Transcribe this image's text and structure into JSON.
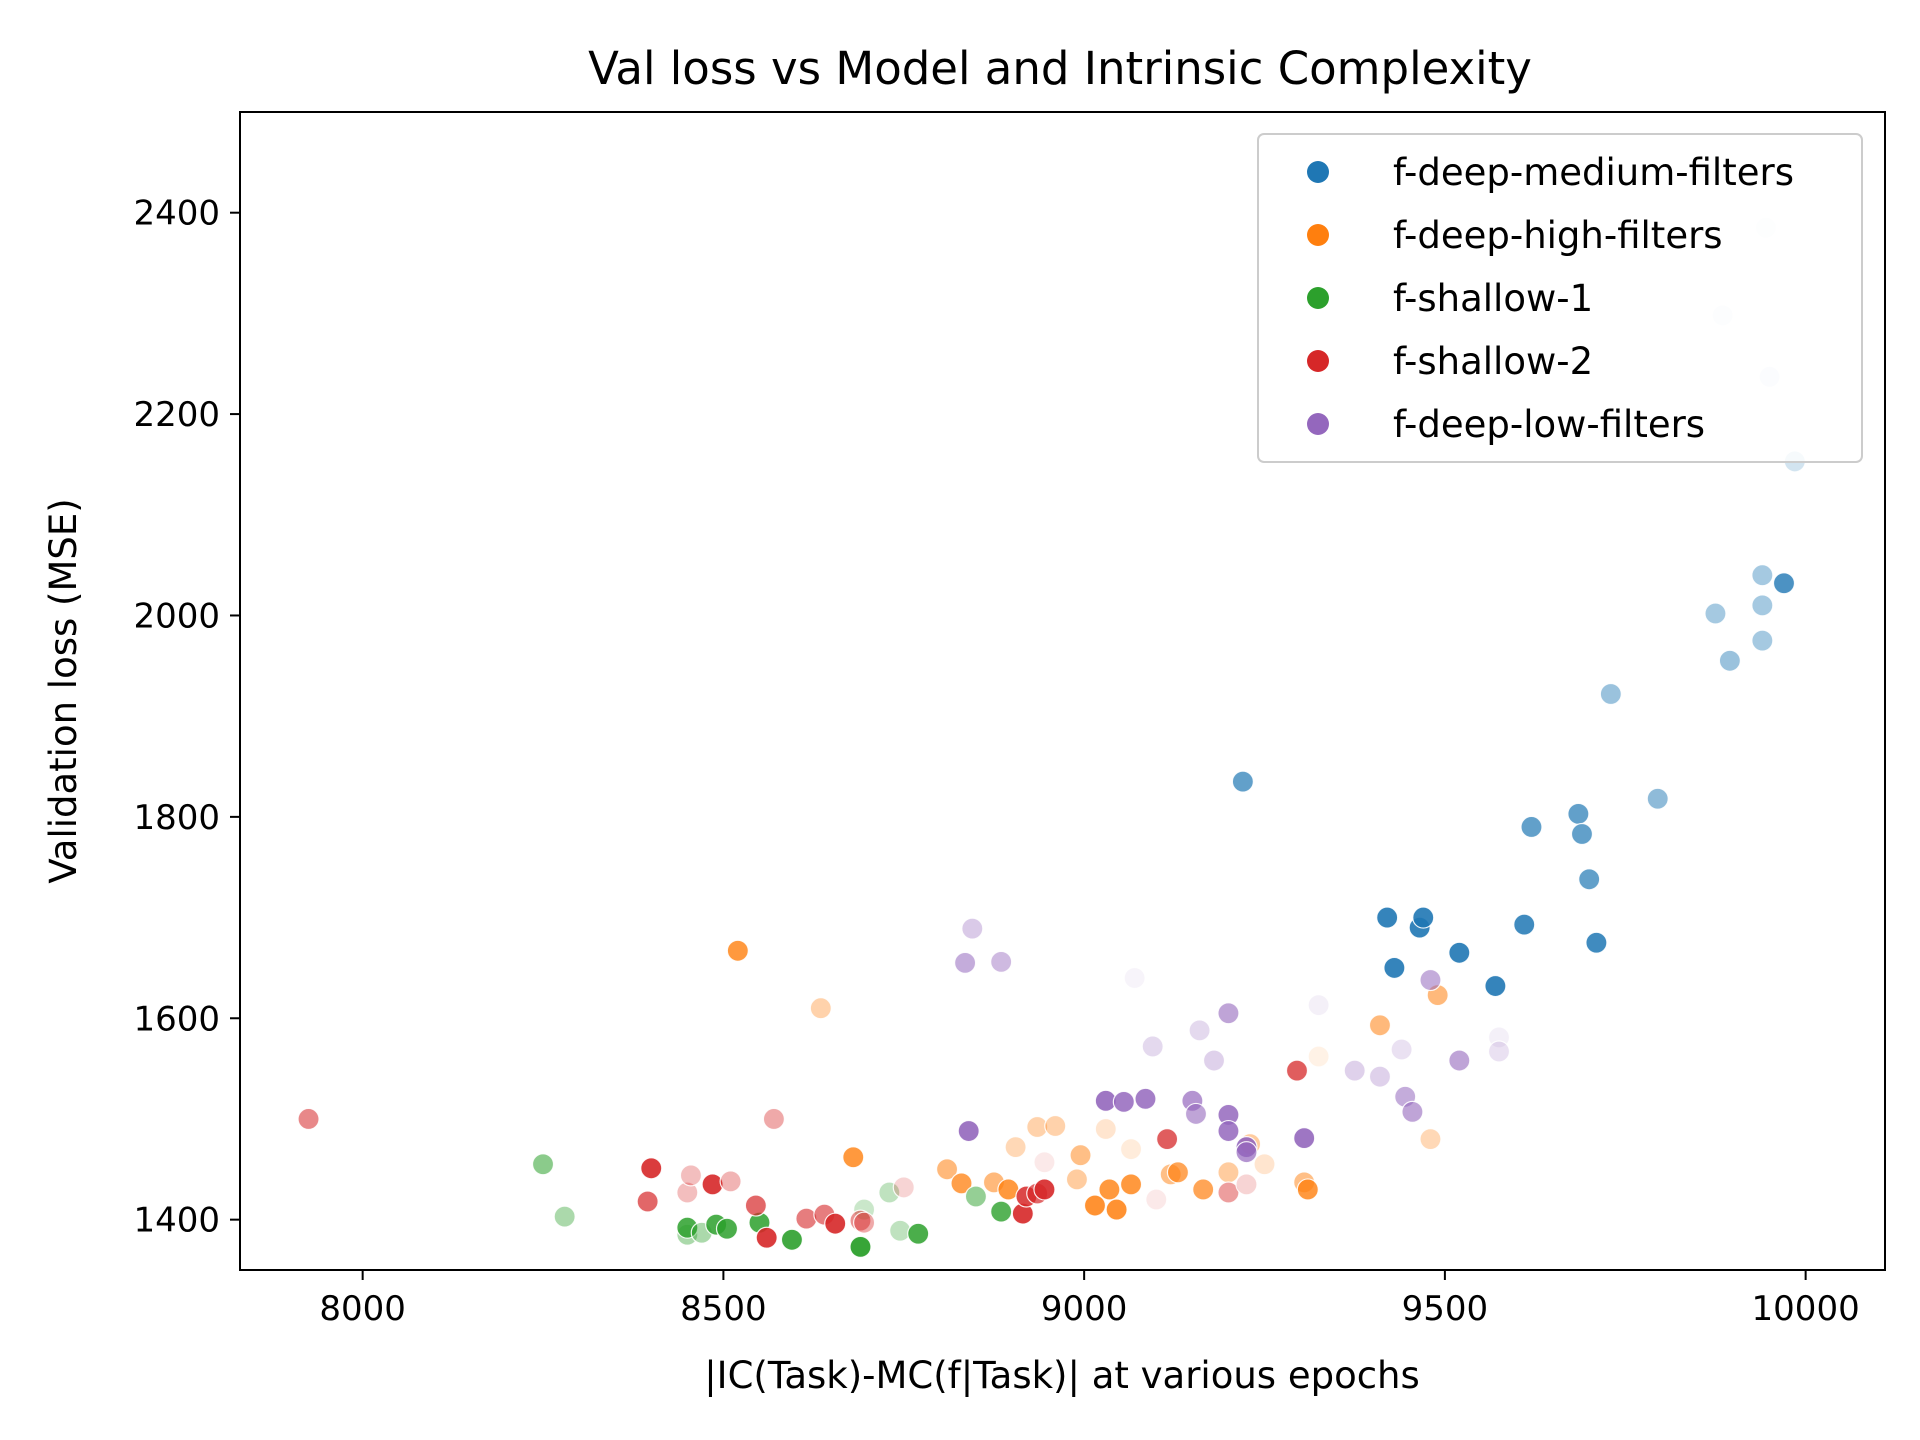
{
  "chart_data": {
    "type": "scatter",
    "title": "Val loss vs Model and Intrinsic Complexity",
    "xlabel": "|IC(Task)-MC(f|Task)| at various epochs",
    "ylabel": "Validation loss (MSE)",
    "xlim": [
      7830,
      10110
    ],
    "ylim": [
      1350,
      2500
    ],
    "xticks": [
      8000,
      8500,
      9000,
      9500,
      10000
    ],
    "yticks": [
      1400,
      1600,
      1800,
      2000,
      2200,
      2400
    ],
    "grid": false,
    "legend_position": "top-right",
    "series": [
      {
        "name": "f-deep-medium-filters",
        "color": "#1f77b4",
        "points": [
          {
            "x": 9220,
            "y": 1835,
            "alpha": 0.7
          },
          {
            "x": 9420,
            "y": 1700,
            "alpha": 0.9
          },
          {
            "x": 9465,
            "y": 1690,
            "alpha": 0.9
          },
          {
            "x": 9470,
            "y": 1700,
            "alpha": 0.9
          },
          {
            "x": 9430,
            "y": 1650,
            "alpha": 0.9
          },
          {
            "x": 9520,
            "y": 1665,
            "alpha": 0.9
          },
          {
            "x": 9570,
            "y": 1632,
            "alpha": 0.9
          },
          {
            "x": 9610,
            "y": 1693,
            "alpha": 0.85
          },
          {
            "x": 9620,
            "y": 1790,
            "alpha": 0.7
          },
          {
            "x": 9685,
            "y": 1803,
            "alpha": 0.7
          },
          {
            "x": 9690,
            "y": 1783,
            "alpha": 0.7
          },
          {
            "x": 9700,
            "y": 1738,
            "alpha": 0.7
          },
          {
            "x": 9710,
            "y": 1675,
            "alpha": 0.85
          },
          {
            "x": 9730,
            "y": 1922,
            "alpha": 0.45
          },
          {
            "x": 9795,
            "y": 1818,
            "alpha": 0.5
          },
          {
            "x": 9875,
            "y": 2002,
            "alpha": 0.4
          },
          {
            "x": 9885,
            "y": 2298,
            "alpha": 0.08
          },
          {
            "x": 9895,
            "y": 1955,
            "alpha": 0.45
          },
          {
            "x": 9940,
            "y": 2040,
            "alpha": 0.4
          },
          {
            "x": 9940,
            "y": 2010,
            "alpha": 0.4
          },
          {
            "x": 9940,
            "y": 1975,
            "alpha": 0.4
          },
          {
            "x": 9945,
            "y": 2385,
            "alpha": 0.05
          },
          {
            "x": 9950,
            "y": 2237,
            "alpha": 0.1
          },
          {
            "x": 9970,
            "y": 2032,
            "alpha": 0.8
          },
          {
            "x": 9985,
            "y": 2153,
            "alpha": 0.2
          }
        ]
      },
      {
        "name": "f-deep-high-filters",
        "color": "#ff7f0e",
        "points": [
          {
            "x": 8520,
            "y": 1667,
            "alpha": 0.8
          },
          {
            "x": 8635,
            "y": 1610,
            "alpha": 0.35
          },
          {
            "x": 8680,
            "y": 1462,
            "alpha": 0.8
          },
          {
            "x": 8810,
            "y": 1450,
            "alpha": 0.55
          },
          {
            "x": 8830,
            "y": 1436,
            "alpha": 0.75
          },
          {
            "x": 8875,
            "y": 1437,
            "alpha": 0.55
          },
          {
            "x": 8895,
            "y": 1430,
            "alpha": 0.8
          },
          {
            "x": 8905,
            "y": 1472,
            "alpha": 0.3
          },
          {
            "x": 8935,
            "y": 1492,
            "alpha": 0.35
          },
          {
            "x": 8960,
            "y": 1493,
            "alpha": 0.35
          },
          {
            "x": 8990,
            "y": 1440,
            "alpha": 0.4
          },
          {
            "x": 8995,
            "y": 1464,
            "alpha": 0.5
          },
          {
            "x": 9015,
            "y": 1414,
            "alpha": 0.85
          },
          {
            "x": 9030,
            "y": 1490,
            "alpha": 0.2
          },
          {
            "x": 9035,
            "y": 1430,
            "alpha": 0.8
          },
          {
            "x": 9045,
            "y": 1410,
            "alpha": 0.85
          },
          {
            "x": 9065,
            "y": 1470,
            "alpha": 0.15
          },
          {
            "x": 9065,
            "y": 1435,
            "alpha": 0.8
          },
          {
            "x": 9120,
            "y": 1445,
            "alpha": 0.5
          },
          {
            "x": 9130,
            "y": 1447,
            "alpha": 0.7
          },
          {
            "x": 9165,
            "y": 1430,
            "alpha": 0.7
          },
          {
            "x": 9200,
            "y": 1447,
            "alpha": 0.4
          },
          {
            "x": 9230,
            "y": 1475,
            "alpha": 0.4
          },
          {
            "x": 9250,
            "y": 1455,
            "alpha": 0.2
          },
          {
            "x": 9305,
            "y": 1437,
            "alpha": 0.5
          },
          {
            "x": 9310,
            "y": 1430,
            "alpha": 0.8
          },
          {
            "x": 9325,
            "y": 1562,
            "alpha": 0.1
          },
          {
            "x": 9410,
            "y": 1593,
            "alpha": 0.55
          },
          {
            "x": 9480,
            "y": 1480,
            "alpha": 0.3
          },
          {
            "x": 9490,
            "y": 1623,
            "alpha": 0.55
          }
        ]
      },
      {
        "name": "f-shallow-1",
        "color": "#2ca02c",
        "points": [
          {
            "x": 8250,
            "y": 1455,
            "alpha": 0.55
          },
          {
            "x": 8280,
            "y": 1403,
            "alpha": 0.4
          },
          {
            "x": 8450,
            "y": 1385,
            "alpha": 0.4
          },
          {
            "x": 8450,
            "y": 1392,
            "alpha": 0.85
          },
          {
            "x": 8470,
            "y": 1387,
            "alpha": 0.4
          },
          {
            "x": 8490,
            "y": 1395,
            "alpha": 0.85
          },
          {
            "x": 8505,
            "y": 1391,
            "alpha": 0.85
          },
          {
            "x": 8550,
            "y": 1397,
            "alpha": 0.85
          },
          {
            "x": 8595,
            "y": 1380,
            "alpha": 0.9
          },
          {
            "x": 8690,
            "y": 1373,
            "alpha": 0.95
          },
          {
            "x": 8695,
            "y": 1410,
            "alpha": 0.25
          },
          {
            "x": 8730,
            "y": 1427,
            "alpha": 0.3
          },
          {
            "x": 8745,
            "y": 1389,
            "alpha": 0.3
          },
          {
            "x": 8770,
            "y": 1386,
            "alpha": 0.85
          },
          {
            "x": 8850,
            "y": 1423,
            "alpha": 0.5
          },
          {
            "x": 8885,
            "y": 1408,
            "alpha": 0.8
          }
        ]
      },
      {
        "name": "f-shallow-2",
        "color": "#d62728",
        "points": [
          {
            "x": 7925,
            "y": 1500,
            "alpha": 0.55
          },
          {
            "x": 8395,
            "y": 1418,
            "alpha": 0.7
          },
          {
            "x": 8400,
            "y": 1451,
            "alpha": 0.9
          },
          {
            "x": 8450,
            "y": 1427,
            "alpha": 0.3
          },
          {
            "x": 8455,
            "y": 1444,
            "alpha": 0.3
          },
          {
            "x": 8485,
            "y": 1435,
            "alpha": 0.9
          },
          {
            "x": 8510,
            "y": 1438,
            "alpha": 0.35
          },
          {
            "x": 8545,
            "y": 1414,
            "alpha": 0.7
          },
          {
            "x": 8560,
            "y": 1382,
            "alpha": 0.9
          },
          {
            "x": 8570,
            "y": 1500,
            "alpha": 0.4
          },
          {
            "x": 8615,
            "y": 1401,
            "alpha": 0.6
          },
          {
            "x": 8640,
            "y": 1405,
            "alpha": 0.6
          },
          {
            "x": 8655,
            "y": 1396,
            "alpha": 0.9
          },
          {
            "x": 8690,
            "y": 1399,
            "alpha": 0.5
          },
          {
            "x": 8695,
            "y": 1397,
            "alpha": 0.4
          },
          {
            "x": 8750,
            "y": 1432,
            "alpha": 0.2
          },
          {
            "x": 8915,
            "y": 1406,
            "alpha": 0.9
          },
          {
            "x": 8920,
            "y": 1423,
            "alpha": 0.85
          },
          {
            "x": 8935,
            "y": 1426,
            "alpha": 0.7
          },
          {
            "x": 8945,
            "y": 1430,
            "alpha": 0.9
          },
          {
            "x": 8945,
            "y": 1457,
            "alpha": 0.1
          },
          {
            "x": 9100,
            "y": 1420,
            "alpha": 0.1
          },
          {
            "x": 9115,
            "y": 1480,
            "alpha": 0.75
          },
          {
            "x": 9200,
            "y": 1427,
            "alpha": 0.45
          },
          {
            "x": 9225,
            "y": 1435,
            "alpha": 0.2
          },
          {
            "x": 9295,
            "y": 1548,
            "alpha": 0.75
          }
        ]
      },
      {
        "name": "f-deep-low-filters",
        "color": "#9467bd",
        "points": [
          {
            "x": 8835,
            "y": 1655,
            "alpha": 0.55
          },
          {
            "x": 8840,
            "y": 1488,
            "alpha": 0.9
          },
          {
            "x": 8845,
            "y": 1689,
            "alpha": 0.35
          },
          {
            "x": 8885,
            "y": 1656,
            "alpha": 0.45
          },
          {
            "x": 9030,
            "y": 1518,
            "alpha": 0.9
          },
          {
            "x": 9055,
            "y": 1517,
            "alpha": 0.85
          },
          {
            "x": 9070,
            "y": 1640,
            "alpha": 0.07
          },
          {
            "x": 9085,
            "y": 1520,
            "alpha": 0.85
          },
          {
            "x": 9095,
            "y": 1572,
            "alpha": 0.25
          },
          {
            "x": 9150,
            "y": 1518,
            "alpha": 0.7
          },
          {
            "x": 9155,
            "y": 1505,
            "alpha": 0.6
          },
          {
            "x": 9160,
            "y": 1588,
            "alpha": 0.25
          },
          {
            "x": 9180,
            "y": 1558,
            "alpha": 0.3
          },
          {
            "x": 9200,
            "y": 1605,
            "alpha": 0.6
          },
          {
            "x": 9200,
            "y": 1504,
            "alpha": 0.85
          },
          {
            "x": 9200,
            "y": 1488,
            "alpha": 0.85
          },
          {
            "x": 9225,
            "y": 1472,
            "alpha": 0.9
          },
          {
            "x": 9225,
            "y": 1467,
            "alpha": 0.7
          },
          {
            "x": 9305,
            "y": 1481,
            "alpha": 0.9
          },
          {
            "x": 9325,
            "y": 1613,
            "alpha": 0.1
          },
          {
            "x": 9375,
            "y": 1548,
            "alpha": 0.3
          },
          {
            "x": 9410,
            "y": 1542,
            "alpha": 0.3
          },
          {
            "x": 9440,
            "y": 1569,
            "alpha": 0.2
          },
          {
            "x": 9445,
            "y": 1522,
            "alpha": 0.55
          },
          {
            "x": 9455,
            "y": 1507,
            "alpha": 0.6
          },
          {
            "x": 9480,
            "y": 1638,
            "alpha": 0.55
          },
          {
            "x": 9520,
            "y": 1558,
            "alpha": 0.6
          },
          {
            "x": 9575,
            "y": 1581,
            "alpha": 0.1
          },
          {
            "x": 9575,
            "y": 1567,
            "alpha": 0.2
          }
        ]
      }
    ]
  }
}
